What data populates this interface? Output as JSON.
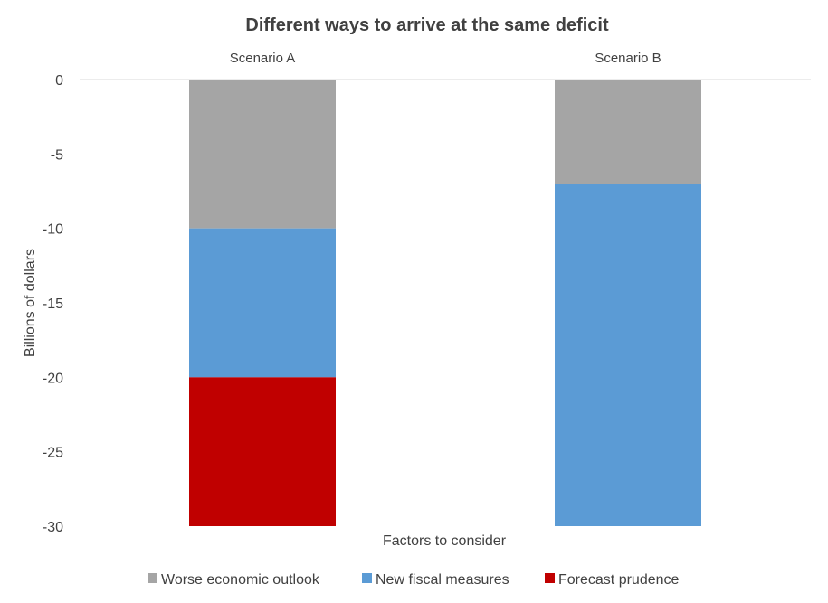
{
  "chart_data": {
    "type": "bar",
    "stacked": true,
    "title": "Different ways to arrive at the same deficit",
    "xlabel": "Factors to consider",
    "ylabel": "Billions of dollars",
    "categories": [
      "Scenario A",
      "Scenario B"
    ],
    "category_axis_position": "top",
    "ylim": [
      -30,
      0
    ],
    "yticks": [
      0,
      -5,
      -10,
      -15,
      -20,
      -25,
      -30
    ],
    "grid": false,
    "legend_position": "bottom",
    "series": [
      {
        "name": "Worse economic outlook",
        "color": "#A5A5A5",
        "values": [
          -10,
          -7
        ]
      },
      {
        "name": "New fiscal measures",
        "color": "#5B9BD5",
        "values": [
          -10,
          -23
        ]
      },
      {
        "name": "Forecast prudence",
        "color": "#C00000",
        "values": [
          -10,
          0
        ]
      }
    ]
  }
}
